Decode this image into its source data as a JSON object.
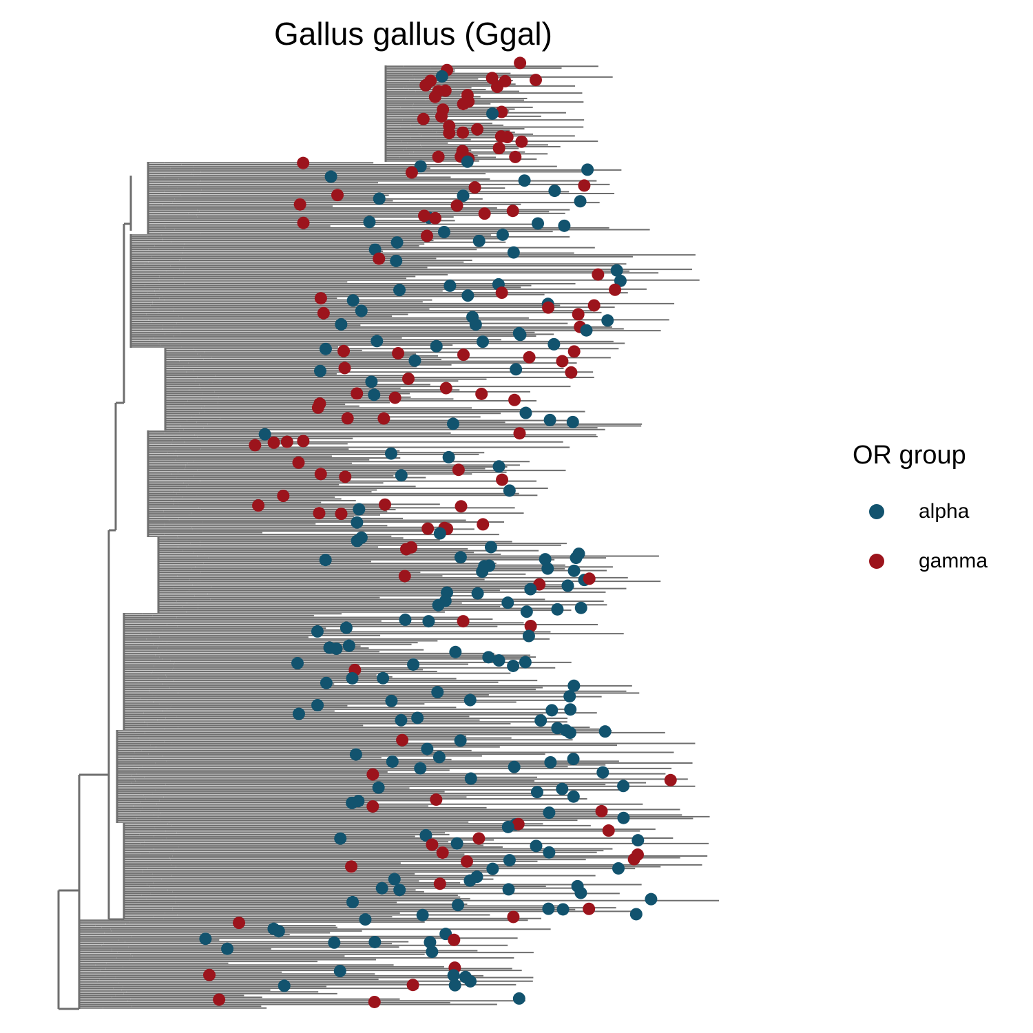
{
  "title": "Gallus gallus (Ggal)",
  "legend": {
    "title": "OR group",
    "items": [
      {
        "label": "alpha",
        "color": "#12536E"
      },
      {
        "label": "gamma",
        "color": "#9C141C"
      }
    ]
  },
  "colors": {
    "branch": "#6e6e6e"
  }
}
